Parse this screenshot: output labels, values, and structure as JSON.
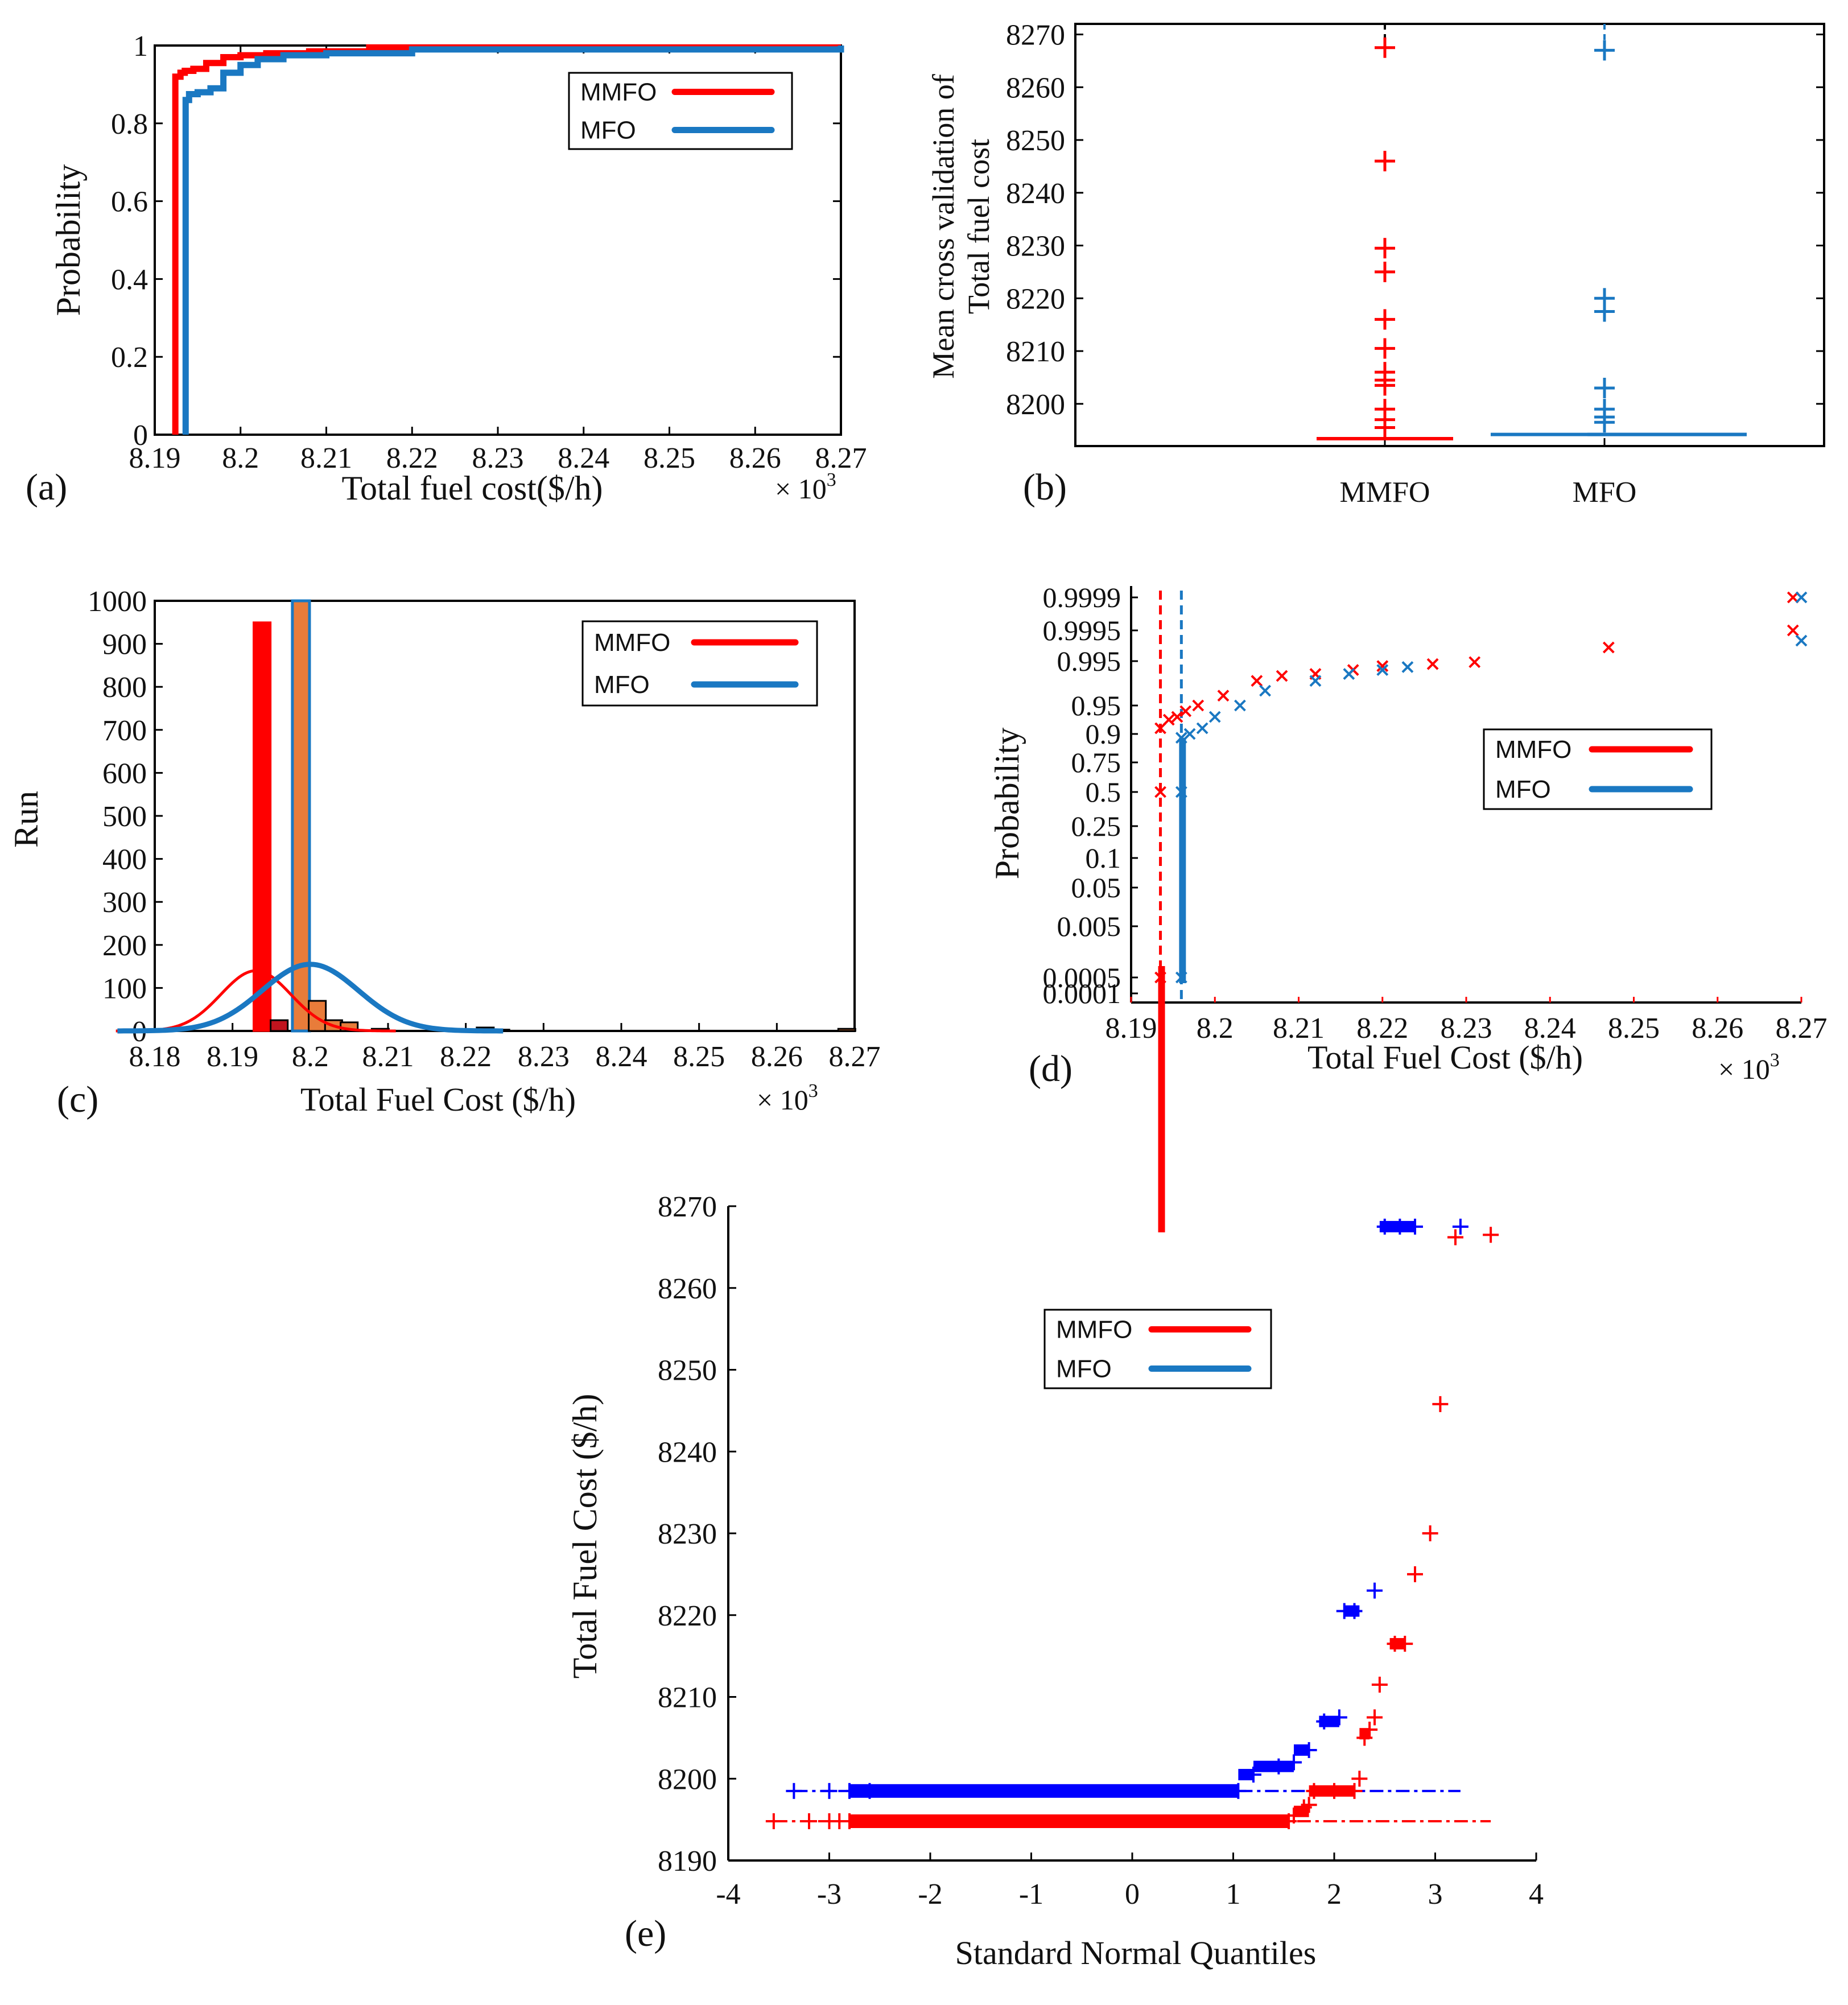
{
  "colors": {
    "mmfo": "#ff0000",
    "mfo": "#1a78c2",
    "qq_mfo": "#0000ff",
    "bar_orange": "#e87c3a",
    "bar_dark_red": "#c0141e"
  },
  "chart_data": [
    {
      "id": "a",
      "panel_label": "(a)",
      "type": "line",
      "title": "",
      "xlabel": "Total fuel cost($/h)",
      "ylabel": "Probability",
      "x_multiplier": "× 10",
      "x_multiplier_exp": "3",
      "xlim": [
        8.19,
        8.27
      ],
      "ylim": [
        0,
        1
      ],
      "xticks": [
        "8.19",
        "8.2",
        "8.21",
        "8.22",
        "8.23",
        "8.24",
        "8.25",
        "8.26",
        "8.27"
      ],
      "yticks": [
        "0",
        "0.2",
        "0.4",
        "0.6",
        "0.8",
        "1"
      ],
      "legend": {
        "position": "top-right",
        "entries": [
          "MMFO",
          "MFO"
        ]
      },
      "series": [
        {
          "name": "MMFO",
          "x": [
            8.1924,
            8.1924,
            8.193,
            8.1935,
            8.1945,
            8.196,
            8.198,
            8.2,
            8.203,
            8.208,
            8.215,
            8.27
          ],
          "y": [
            0.0,
            0.92,
            0.93,
            0.935,
            0.94,
            0.955,
            0.97,
            0.975,
            0.98,
            0.985,
            0.995,
            1.0
          ]
        },
        {
          "name": "MFO",
          "x": [
            8.1936,
            8.1936,
            8.194,
            8.195,
            8.1965,
            8.198,
            8.2,
            8.202,
            8.205,
            8.21,
            8.22,
            8.27
          ],
          "y": [
            0.0,
            0.86,
            0.875,
            0.88,
            0.89,
            0.93,
            0.95,
            0.965,
            0.975,
            0.98,
            0.99,
            1.0
          ]
        }
      ]
    },
    {
      "id": "b",
      "panel_label": "(b)",
      "type": "box",
      "ylabel": "Mean cross validation of Total fuel cost",
      "ylabel_lines": [
        "Mean cross validation of",
        "Total fuel cost"
      ],
      "ylim": [
        8192,
        8272
      ],
      "yticks": [
        "8200",
        "8210",
        "8220",
        "8230",
        "8240",
        "8250",
        "8260",
        "8270"
      ],
      "categories": [
        "MMFO",
        "MFO"
      ],
      "series": [
        {
          "name": "MMFO",
          "median": 8193.4,
          "outliers": [
            8267.5,
            8246.0,
            8229.5,
            8225.0,
            8216.0,
            8210.5,
            8206.0,
            8204.5,
            8203.5,
            8199.0,
            8197.0,
            8195.5
          ]
        },
        {
          "name": "MFO",
          "median": 8194.2,
          "outliers": [
            8267.0,
            8220.0,
            8217.5,
            8203.0,
            8199.0,
            8197.5,
            8196.5
          ]
        }
      ]
    },
    {
      "id": "c",
      "panel_label": "(c)",
      "type": "bar",
      "xlabel": "Total Fuel Cost ($/h)",
      "ylabel": "Run",
      "x_multiplier": "× 10",
      "x_multiplier_exp": "3",
      "xlim": [
        8.18,
        8.27
      ],
      "ylim": [
        0,
        1000
      ],
      "xticks": [
        "8.18",
        "8.19",
        "8.2",
        "8.21",
        "8.22",
        "8.23",
        "8.24",
        "8.25",
        "8.26",
        "8.27"
      ],
      "yticks": [
        "0",
        "100",
        "200",
        "300",
        "400",
        "500",
        "600",
        "700",
        "800",
        "900",
        "1000"
      ],
      "legend": {
        "position": "top-right",
        "entries": [
          "MMFO",
          "MFO"
        ]
      },
      "series": [
        {
          "name": "MMFO",
          "bin_centers": [
            8.1938,
            8.196,
            8.1988
          ],
          "values": [
            950,
            25,
            20
          ]
        },
        {
          "name": "MFO",
          "bin_centers": [
            8.1988,
            8.2009,
            8.203,
            8.205,
            8.209,
            8.2225,
            8.2245,
            8.269
          ],
          "values": [
            1000,
            70,
            25,
            20,
            5,
            8,
            3,
            5
          ]
        }
      ],
      "fits": [
        {
          "name": "MMFO",
          "mean": 8.193,
          "peak": 140,
          "sigma": 0.0045
        },
        {
          "name": "MFO",
          "mean": 8.2,
          "peak": 155,
          "sigma": 0.0062
        }
      ]
    },
    {
      "id": "d",
      "panel_label": "(d)",
      "type": "scatter",
      "xlabel": "Total Fuel Cost ($/h)",
      "ylabel": "Probability",
      "x_multiplier": "× 10",
      "x_multiplier_exp": "3",
      "xlim": [
        8.19,
        8.27
      ],
      "xticks": [
        "8.19",
        "8.2",
        "8.21",
        "8.22",
        "8.23",
        "8.24",
        "8.25",
        "8.26",
        "8.27"
      ],
      "yticks": [
        "0.0001",
        "0.0005",
        "0.005",
        "0.05",
        "0.1",
        "0.25",
        "0.5",
        "0.75",
        "0.9",
        "0.95",
        "0.995",
        "0.9995",
        "0.9999"
      ],
      "legend": {
        "position": "middle-right",
        "entries": [
          "MMFO",
          "MFO"
        ]
      },
      "series": [
        {
          "name": "MMFO",
          "x": [
            8.1935,
            8.1935,
            8.1935,
            8.1945,
            8.1955,
            8.1965,
            8.198,
            8.201,
            8.205,
            8.208,
            8.212,
            8.2165,
            8.22,
            8.226,
            8.231,
            8.247,
            8.269,
            8.269
          ],
          "y": [
            0.0005,
            0.5,
            0.91,
            0.925,
            0.93,
            0.94,
            0.95,
            0.96,
            0.975,
            0.98,
            0.982,
            0.986,
            0.99,
            0.992,
            0.994,
            0.997,
            0.9995,
            0.9999
          ]
        },
        {
          "name": "MFO",
          "x": [
            8.196,
            8.196,
            8.196,
            8.197,
            8.1985,
            8.2,
            8.203,
            8.206,
            8.212,
            8.216,
            8.22,
            8.223,
            8.27,
            8.27
          ],
          "y": [
            0.0005,
            0.5,
            0.88,
            0.9,
            0.91,
            0.93,
            0.95,
            0.965,
            0.975,
            0.982,
            0.986,
            0.989,
            0.998,
            0.9999
          ]
        }
      ]
    },
    {
      "id": "e",
      "panel_label": "(e)",
      "type": "scatter",
      "xlabel": "Standard Normal Quantiles",
      "ylabel": "Total Fuel Cost ($/h)",
      "xlim": [
        -4,
        4
      ],
      "ylim": [
        8190,
        8270
      ],
      "xticks": [
        "-4",
        "-3",
        "-2",
        "-1",
        "0",
        "1",
        "2",
        "3",
        "4"
      ],
      "yticks": [
        "8190",
        "8200",
        "8210",
        "8220",
        "8230",
        "8240",
        "8250",
        "8260",
        "8270"
      ],
      "legend": {
        "position": "top-left",
        "entries": [
          "MMFO",
          "MFO"
        ]
      },
      "series": [
        {
          "name": "MMFO",
          "x": [
            -3.55,
            -3.2,
            -3.0,
            -2.9,
            -2.8,
            1.55,
            1.6,
            1.7,
            1.75,
            1.8,
            2.0,
            2.2,
            2.25,
            2.3,
            2.35,
            2.4,
            2.45,
            2.6,
            2.7,
            2.8,
            2.95,
            3.05,
            3.2,
            3.55
          ],
          "y": [
            8194.8,
            8194.8,
            8194.8,
            8194.8,
            8194.8,
            8194.8,
            8195.5,
            8196.5,
            8196.8,
            8198.5,
            8198.5,
            8198.5,
            8200.0,
            8205.0,
            8206.0,
            8207.5,
            8211.5,
            8216.5,
            8216.5,
            8225.0,
            8230.0,
            8245.8,
            8266.2,
            8266.5
          ]
        },
        {
          "name": "MFO",
          "x": [
            -3.35,
            -3.0,
            -2.8,
            -2.6,
            1.05,
            1.2,
            1.45,
            1.6,
            1.75,
            1.9,
            2.05,
            2.1,
            2.2,
            2.4,
            2.5,
            2.65,
            2.8,
            3.25
          ],
          "y": [
            8198.5,
            8198.5,
            8198.5,
            8198.5,
            8198.5,
            8200.5,
            8201.5,
            8202.0,
            8203.5,
            8207.0,
            8207.5,
            8220.5,
            8220.5,
            8223.0,
            8267.5,
            8267.5,
            8267.5,
            8267.5
          ]
        }
      ],
      "reference_lines": [
        {
          "name": "MMFO",
          "y": 8194.8,
          "x0": -3.55,
          "x1": 3.55
        },
        {
          "name": "MFO",
          "y": 8198.5,
          "x0": -3.35,
          "x1": 3.25
        }
      ]
    }
  ]
}
